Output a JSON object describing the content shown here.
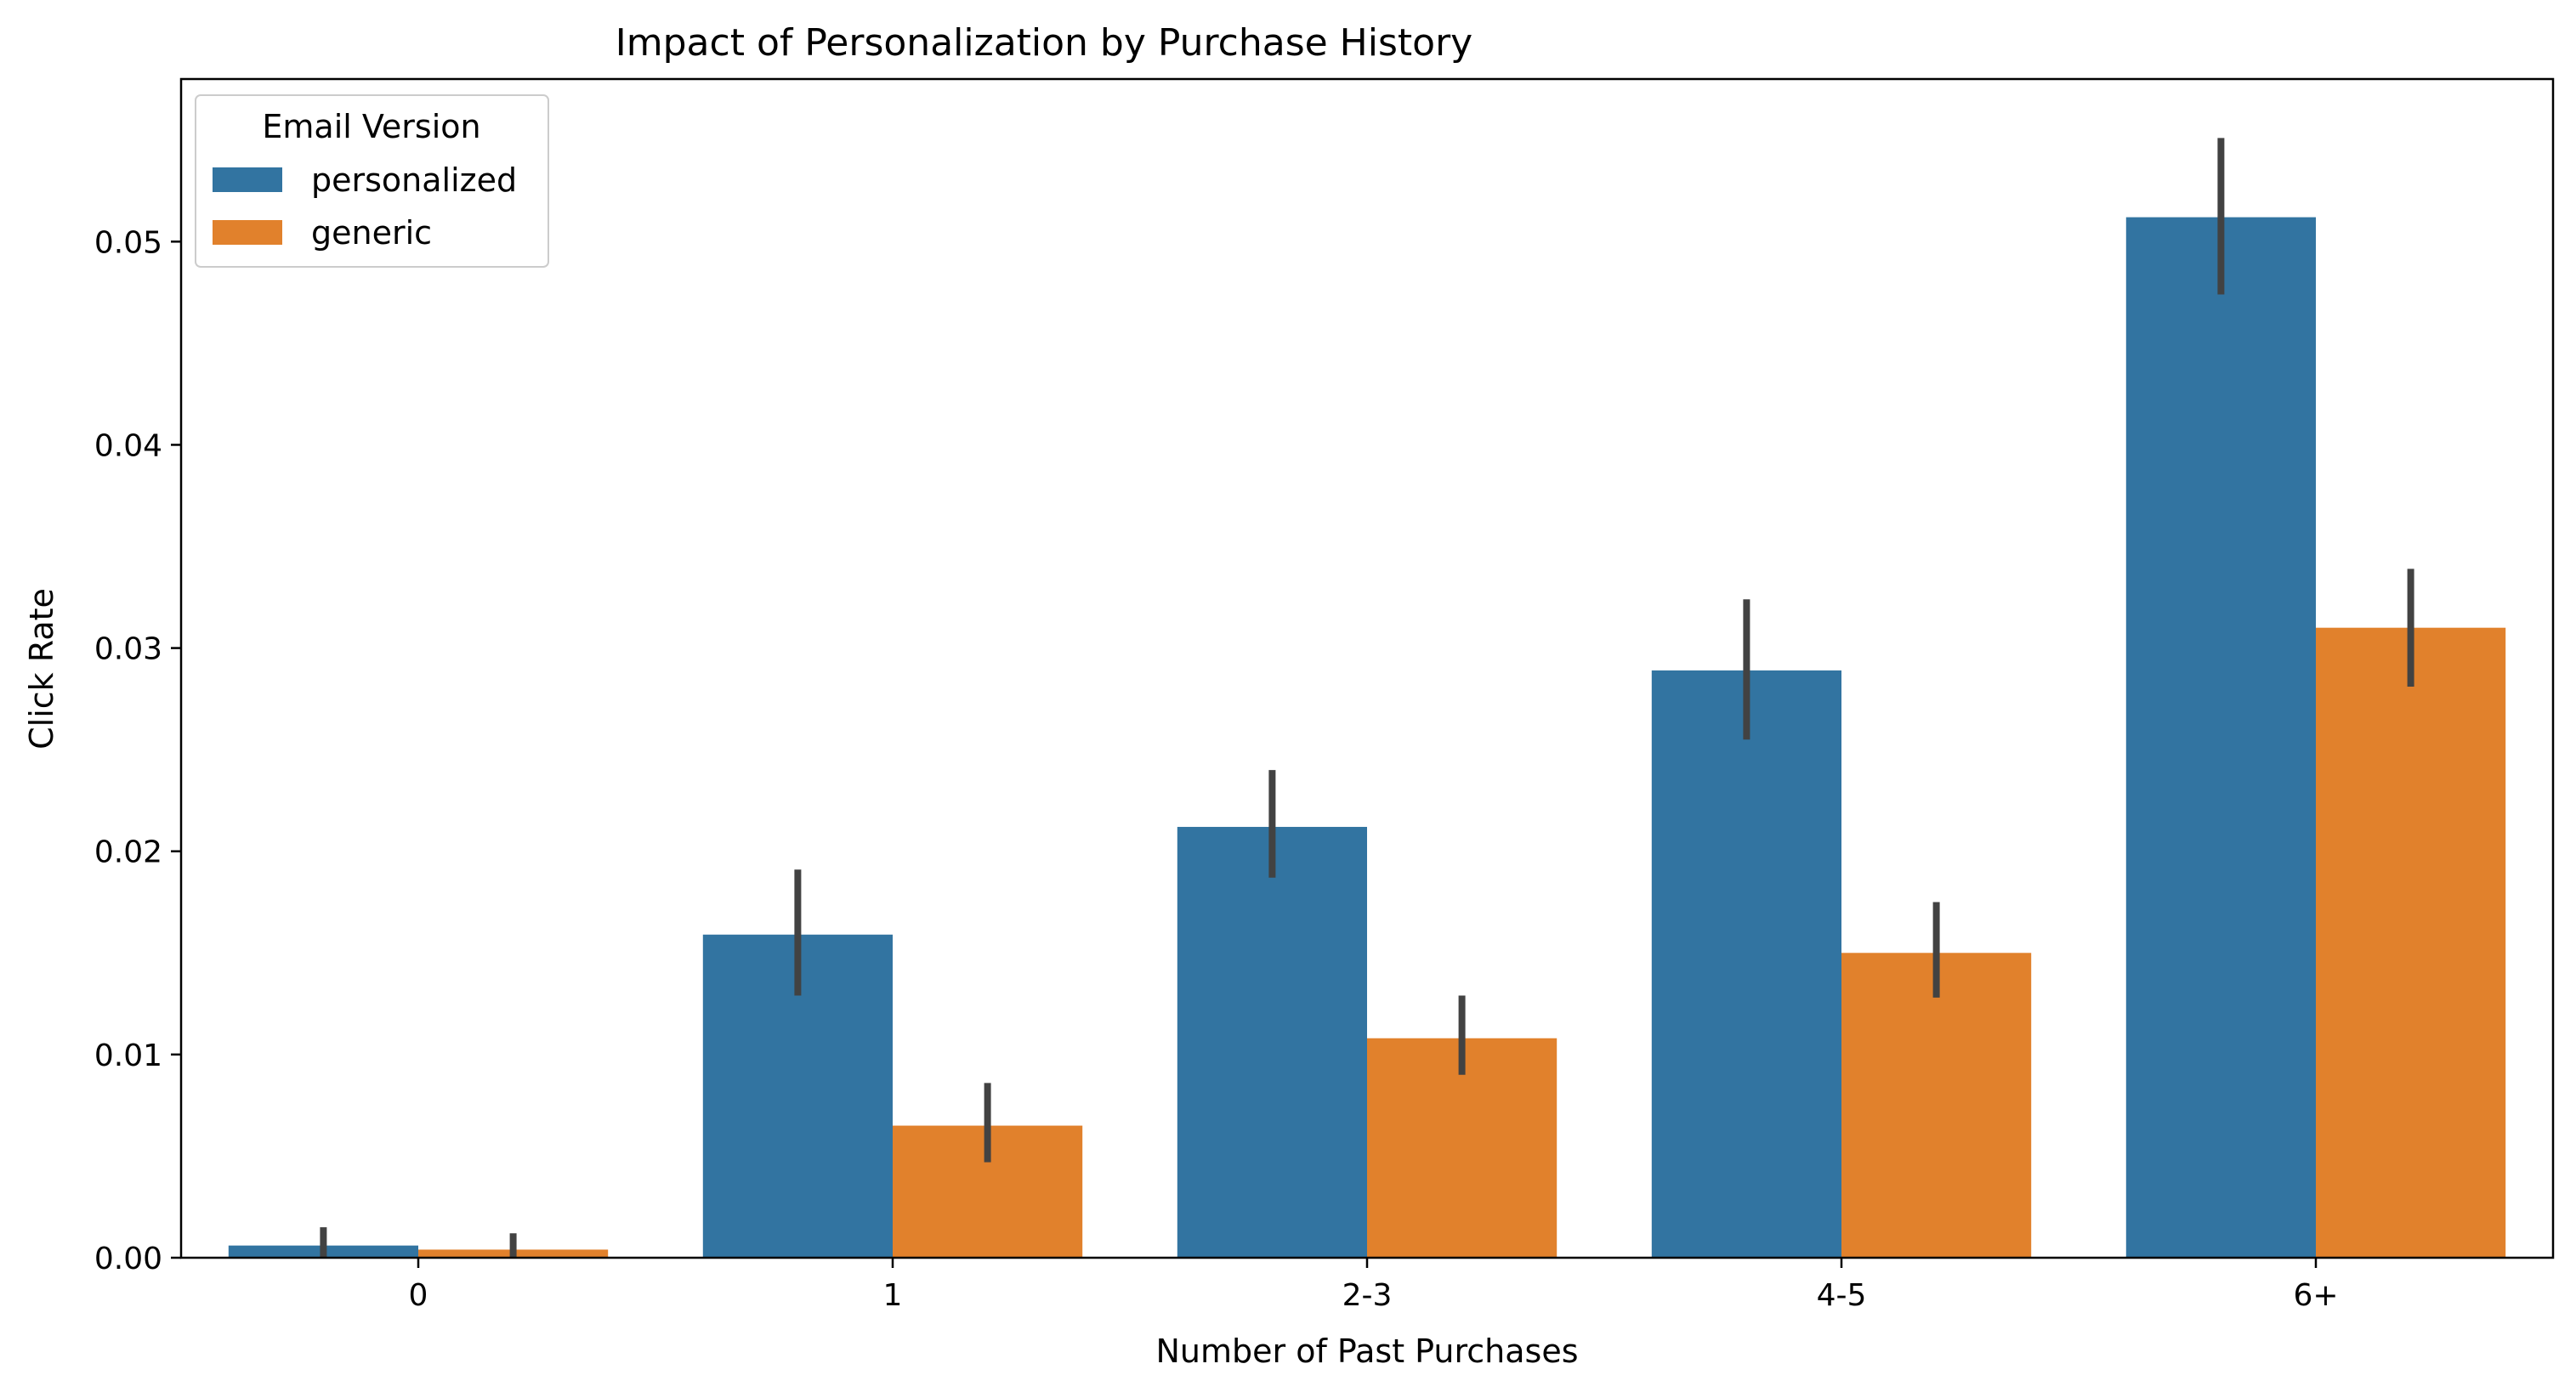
{
  "chart_data": {
    "type": "bar",
    "title": "Impact of Personalization by Purchase History",
    "xlabel": "Number of Past Purchases",
    "ylabel": "Click Rate",
    "categories": [
      "0",
      "1",
      "2-3",
      "4-5",
      "6+"
    ],
    "ylim": [
      0,
      0.058
    ],
    "yticks": [
      0.0,
      0.01,
      0.02,
      0.03,
      0.04,
      0.05
    ],
    "ytick_labels": [
      "0.00",
      "0.01",
      "0.02",
      "0.03",
      "0.04",
      "0.05"
    ],
    "grid": false,
    "legend": {
      "title": "Email Version",
      "placement": "top-left"
    },
    "series": [
      {
        "name": "personalized",
        "color": "#3274a1",
        "values": [
          0.0006,
          0.0159,
          0.0212,
          0.0289,
          0.0512
        ],
        "ci_low": [
          0.0,
          0.0129,
          0.0187,
          0.0255,
          0.0474
        ],
        "ci_high": [
          0.0015,
          0.0191,
          0.024,
          0.0324,
          0.0551
        ]
      },
      {
        "name": "generic",
        "color": "#e1812c",
        "values": [
          0.0004,
          0.0065,
          0.0108,
          0.015,
          0.031
        ],
        "ci_low": [
          0.0,
          0.0047,
          0.009,
          0.0128,
          0.0281
        ],
        "ci_high": [
          0.0012,
          0.0086,
          0.0129,
          0.0175,
          0.0339
        ]
      }
    ],
    "errorbar_color": "#424242"
  }
}
